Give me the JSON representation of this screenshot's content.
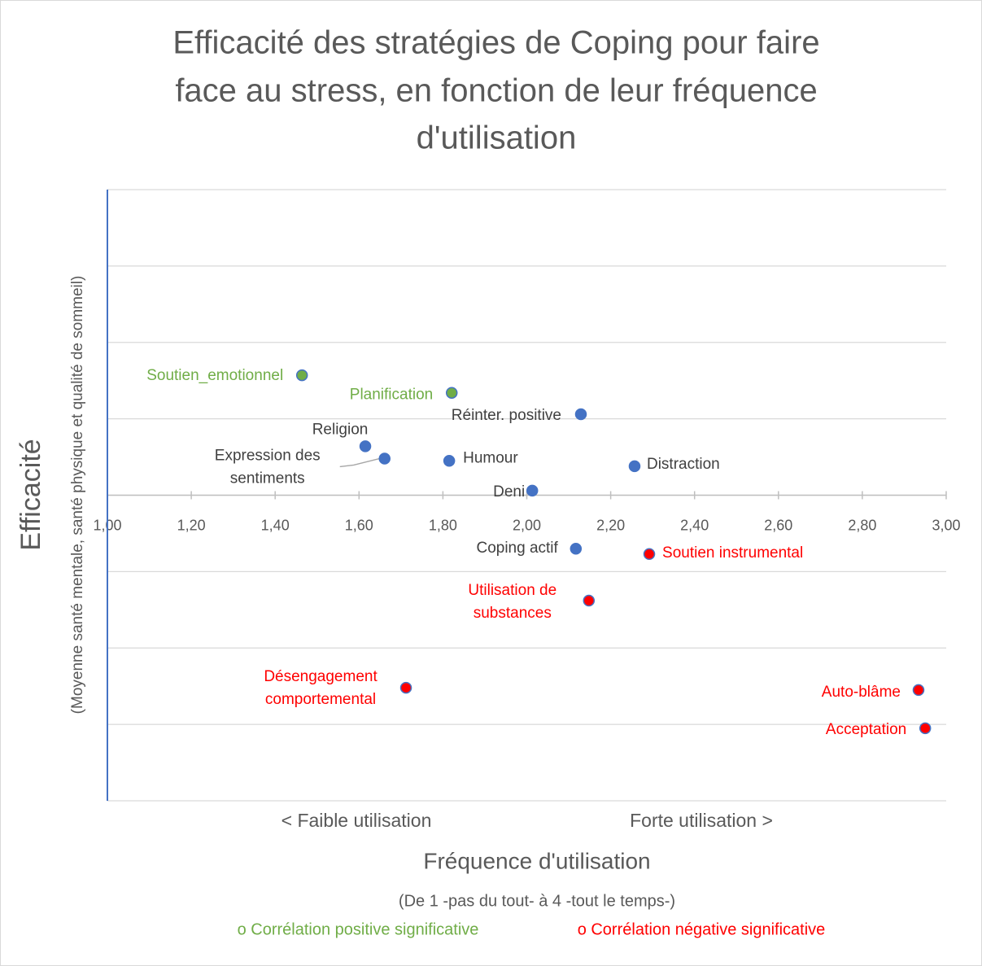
{
  "chart_data": {
    "type": "scatter",
    "title": [
      "Efficacité des stratégies de Coping pour faire",
      "face au stress, en fonction de leur fréquence",
      "d'utilisation"
    ],
    "y_label": "Efficacité",
    "y_sublabel": "(Moyenne santé mentale, santé physique et qualité de sommeil)",
    "x_annotations": [
      "< Faible utilisation",
      "Forte utilisation >"
    ],
    "x_label": "Fréquence d'utilisation",
    "x_sublabel": "(De 1 -pas du tout- à 4 -tout le temps-)",
    "xlim": [
      1,
      3
    ],
    "xticks": [
      {
        "value": 1,
        "label": "1,00"
      },
      {
        "value": 1.2,
        "label": "1,20"
      },
      {
        "value": 1.4,
        "label": "1,40"
      },
      {
        "value": 1.6,
        "label": "1,60"
      },
      {
        "value": 1.8,
        "label": "1,80"
      },
      {
        "value": 2,
        "label": "2,00"
      },
      {
        "value": 2.2,
        "label": "2,20"
      },
      {
        "value": 2.4,
        "label": "2,40"
      },
      {
        "value": 2.6,
        "label": "2,60"
      },
      {
        "value": 2.8,
        "label": "2,80"
      },
      {
        "value": 3,
        "label": "3,00"
      }
    ],
    "ylim": [
      -0.4,
      0.4
    ],
    "yticks": [
      -0.4,
      -0.3,
      -0.2,
      -0.1,
      0,
      0.1,
      0.2,
      0.3,
      0.4
    ],
    "grid": true,
    "series": [
      {
        "color": "#4472c4",
        "label_color": "#404040",
        "labels": [
          [
            "Réinter. positive"
          ],
          [
            "Religion"
          ],
          [
            "Expression des",
            "sentiments"
          ],
          [
            "Humour"
          ],
          [
            "Distraction"
          ],
          [
            "Deni"
          ],
          [
            "Coping actif"
          ]
        ],
        "x": [
          2.129,
          1.615,
          1.661,
          1.815,
          2.257,
          2.013,
          2.117
        ],
        "y": [
          0.106,
          0.064,
          0.048,
          0.045,
          0.038,
          0.006,
          -0.07
        ]
      },
      {
        "name": "o Corrélation positive significative",
        "color": "#70ad47",
        "edgecolor": "#4472c4",
        "label_color": "#70ad47",
        "labels": [
          [
            "Soutien_emotionnel"
          ],
          [
            "Planification"
          ]
        ],
        "x": [
          1.464,
          1.821
        ],
        "y": [
          0.157,
          0.134
        ]
      },
      {
        "name": "o Corrélation négative significative",
        "color": "#ff0000",
        "edgecolor": "#4472c4",
        "label_color": "#ff0000",
        "labels": [
          [
            "Soutien instrumental"
          ],
          [
            "Utilisation de",
            "substances"
          ],
          [
            "Désengagement",
            "comportemental"
          ],
          [
            "Auto-blâme"
          ],
          [
            "Acceptation"
          ]
        ],
        "x": [
          2.292,
          2.148,
          1.712,
          2.934,
          2.95
        ],
        "y": [
          -0.077,
          -0.138,
          -0.252,
          -0.255,
          -0.305
        ]
      }
    ]
  }
}
